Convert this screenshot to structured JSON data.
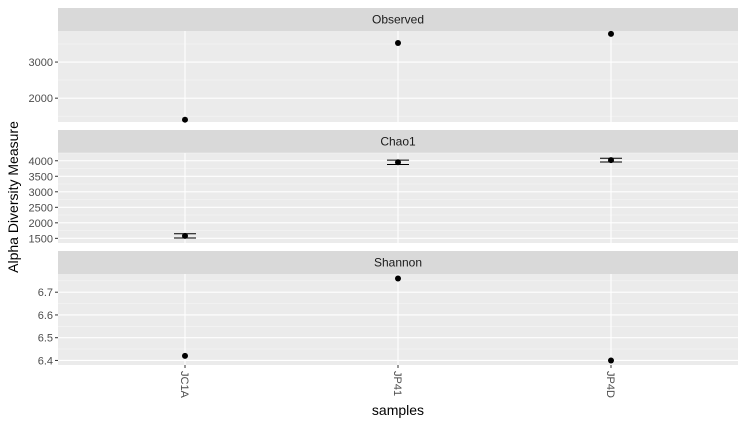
{
  "chart_data": {
    "type": "scatter",
    "xlabel": "samples",
    "ylabel": "Alpha Diversity Measure",
    "categories": [
      "JC1A",
      "JP41",
      "JP4D"
    ],
    "grid": true,
    "colors": {
      "panel_bg": "#ebebeb",
      "strip_bg": "#d9d9d9",
      "grid_major": "#ffffff",
      "point": "#000000"
    },
    "panels": [
      {
        "title": "Observed",
        "values": [
          1404,
          3528,
          3780
        ],
        "ylim": [
          1340,
          3860
        ],
        "yticks": [
          2000,
          3000
        ],
        "yticklabels": [
          "2000",
          "3000"
        ]
      },
      {
        "title": "Chao1",
        "values": [
          1580,
          3950,
          4020
        ],
        "errors": [
          [
            1510,
            1650
          ],
          [
            3880,
            4020
          ],
          [
            3960,
            4080
          ]
        ],
        "ylim": [
          1350,
          4250
        ],
        "yticks": [
          1500,
          2000,
          2500,
          3000,
          3500,
          4000
        ],
        "yticklabels": [
          "1500",
          "2000",
          "2500",
          "3000",
          "3500",
          "4000"
        ]
      },
      {
        "title": "Shannon",
        "values": [
          6.42,
          6.76,
          6.4
        ],
        "ylim": [
          6.38,
          6.78
        ],
        "yticks": [
          6.4,
          6.5,
          6.6,
          6.7
        ],
        "yticklabels": [
          "6.4",
          "6.5",
          "6.6",
          "6.7"
        ]
      }
    ]
  }
}
